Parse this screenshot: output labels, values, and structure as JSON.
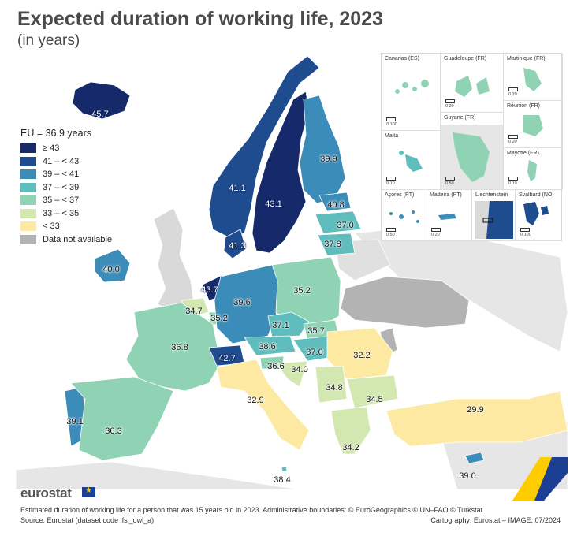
{
  "header": {
    "title": "Expected duration of working life, 2023",
    "subtitle": "(in years)"
  },
  "legend": {
    "title": "EU = 36.9 years",
    "classes": [
      {
        "label": "≥ 43",
        "color": "#162a6b"
      },
      {
        "label": "41 – < 43",
        "color": "#1f4b8f"
      },
      {
        "label": "39 – < 41",
        "color": "#3b8cb8"
      },
      {
        "label": "37 – < 39",
        "color": "#5fbdbd"
      },
      {
        "label": "35 – < 37",
        "color": "#8fd3b4"
      },
      {
        "label": "33 – < 35",
        "color": "#d3e8b0"
      },
      {
        "label": "< 33",
        "color": "#fde9a1"
      },
      {
        "label": "Data not available",
        "color": "#b3b3b3"
      }
    ]
  },
  "insets": {
    "canarias": "Canarias (ES)",
    "guadeloupe": "Guadeloupe (FR)",
    "martinique": "Martinique (FR)",
    "malta": "Malta",
    "guyane": "Guyane (FR)",
    "reunion": "Réunion (FR)",
    "mayotte": "Mayotte (FR)",
    "acores": "Açores (PT)",
    "madeira": "Madeira (PT)",
    "liechtenstein": "Liechtenstein",
    "svalbard": "Svalbard (NO)",
    "scale_0_100": "0   100",
    "scale_0_20": "0   20",
    "scale_0_10": "0   10",
    "scale_0_50": "0   50",
    "scale_0_100b": "0 100"
  },
  "countries": [
    {
      "name": "Iceland",
      "value": "45.7",
      "class": 0
    },
    {
      "name": "Norway",
      "value": "41.1",
      "class": 1
    },
    {
      "name": "Sweden",
      "value": "43.1",
      "class": 0
    },
    {
      "name": "Finland",
      "value": "39.9",
      "class": 2
    },
    {
      "name": "Estonia",
      "value": "40.8",
      "class": 2
    },
    {
      "name": "Latvia",
      "value": "37.0",
      "class": 3
    },
    {
      "name": "Lithuania",
      "value": "37.8",
      "class": 3
    },
    {
      "name": "Denmark",
      "value": "41.3",
      "class": 1
    },
    {
      "name": "Ireland",
      "value": "40.0",
      "class": 2
    },
    {
      "name": "Netherlands",
      "value": "43.7",
      "class": 0
    },
    {
      "name": "Belgium",
      "value": "34.7",
      "class": 5
    },
    {
      "name": "Luxembourg",
      "value": "35.2",
      "class": 4
    },
    {
      "name": "Germany",
      "value": "39.6",
      "class": 2
    },
    {
      "name": "Poland",
      "value": "35.2",
      "class": 4
    },
    {
      "name": "Czechia",
      "value": "37.1",
      "class": 3
    },
    {
      "name": "Slovakia",
      "value": "35.7",
      "class": 4
    },
    {
      "name": "Austria",
      "value": "38.6",
      "class": 3
    },
    {
      "name": "Hungary",
      "value": "37.0",
      "class": 3
    },
    {
      "name": "Romania",
      "value": "32.2",
      "class": 6
    },
    {
      "name": "France",
      "value": "36.8",
      "class": 4
    },
    {
      "name": "Switzerland",
      "value": "42.7",
      "class": 1
    },
    {
      "name": "Slovenia",
      "value": "36.6",
      "class": 4
    },
    {
      "name": "Croatia",
      "value": "34.0",
      "class": 5
    },
    {
      "name": "Serbia",
      "value": "34.8",
      "class": 5
    },
    {
      "name": "Bulgaria",
      "value": "34.5",
      "class": 5
    },
    {
      "name": "Italy",
      "value": "32.9",
      "class": 6
    },
    {
      "name": "Portugal",
      "value": "39.1",
      "class": 2
    },
    {
      "name": "Spain",
      "value": "36.3",
      "class": 4
    },
    {
      "name": "Greece",
      "value": "34.2",
      "class": 5
    },
    {
      "name": "Türkiye",
      "value": "29.9",
      "class": 6
    },
    {
      "name": "Malta",
      "value": "38.4",
      "class": 3
    },
    {
      "name": "Cyprus",
      "value": "39.0",
      "class": 2
    }
  ],
  "footer": {
    "brand": "eurostat",
    "note": "Estimated duration of working life for a person that was 15 years old in 2023. Administrative boundaries: © EuroGeographics © UN–FAO © Turkstat",
    "source": "Source: Eurostat (dataset code lfsi_dwl_a)",
    "cartography": "Cartography: Eurostat – IMAGE, 07/2024"
  }
}
